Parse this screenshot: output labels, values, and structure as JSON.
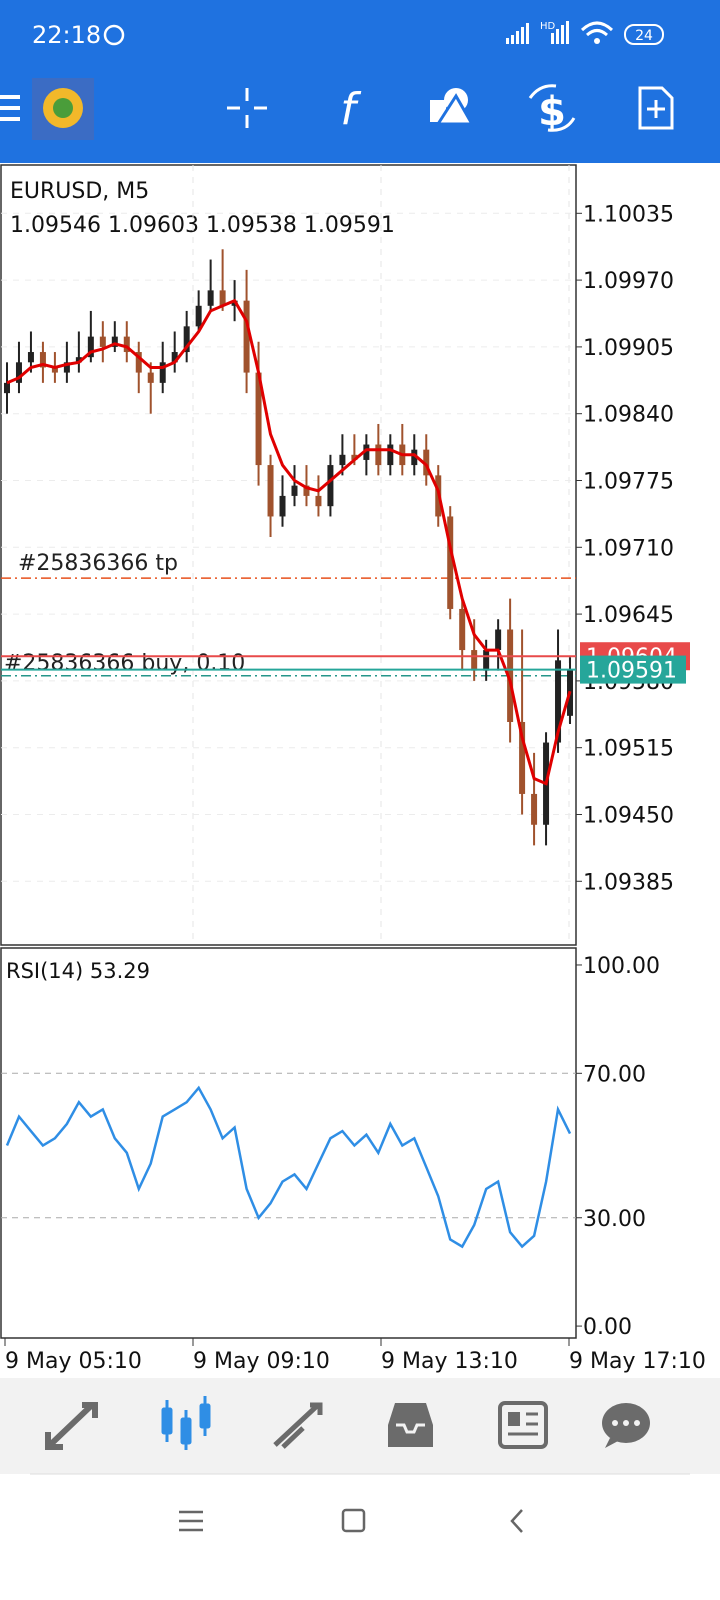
{
  "status_bar": {
    "time": "22:18",
    "network": "HD",
    "battery": "24"
  },
  "chart_data": [
    {
      "type": "candlestick",
      "title": "EURUSD, M5",
      "ohlc_label": "1.09546 1.09603 1.09538 1.09591",
      "open": [
        1.0986,
        1.0987,
        1.0989,
        1.099,
        1.09885,
        1.0988,
        1.0989,
        1.09895,
        1.09915,
        1.09905,
        1.09915,
        1.099,
        1.0988,
        1.0987,
        1.0989,
        1.099,
        1.09925,
        1.09945,
        1.0996,
        1.09945,
        1.0995,
        1.0988,
        1.0979,
        1.0974,
        1.0976,
        1.0977,
        1.0976,
        1.0975,
        1.0979,
        1.098,
        1.09795,
        1.0981,
        1.0979,
        1.0981,
        1.0979,
        1.09805,
        1.0978,
        1.0974,
        1.0965,
        1.0961,
        1.0959,
        1.0961,
        1.0963,
        1.0954,
        1.0947,
        1.0944,
        1.0952,
        1.09546
      ],
      "high": [
        1.0989,
        1.0991,
        1.0992,
        1.0991,
        1.099,
        1.0991,
        1.0992,
        1.0994,
        1.0993,
        1.0993,
        1.0993,
        1.0991,
        1.0989,
        1.0991,
        1.0992,
        1.0994,
        1.0996,
        1.0999,
        1.1,
        1.0997,
        1.0998,
        1.0991,
        1.098,
        1.0978,
        1.0979,
        1.0979,
        1.0978,
        1.098,
        1.0982,
        1.0982,
        1.0982,
        1.0983,
        1.0982,
        1.0983,
        1.0982,
        1.0982,
        1.0979,
        1.0975,
        1.0966,
        1.0964,
        1.0962,
        1.0964,
        1.0966,
        1.0963,
        1.0951,
        1.0953,
        1.0963,
        1.09603
      ],
      "low": [
        1.0984,
        1.0986,
        1.0988,
        1.0987,
        1.0987,
        1.0987,
        1.0988,
        1.0989,
        1.0989,
        1.099,
        1.0989,
        1.0986,
        1.0984,
        1.0986,
        1.0988,
        1.0989,
        1.0992,
        1.0994,
        1.0994,
        1.0993,
        1.0986,
        1.0977,
        1.0972,
        1.0973,
        1.0975,
        1.0975,
        1.0974,
        1.0974,
        1.0978,
        1.0979,
        1.0978,
        1.0978,
        1.0978,
        1.0978,
        1.0978,
        1.0977,
        1.0973,
        1.0964,
        1.0959,
        1.0958,
        1.0958,
        1.0959,
        1.0952,
        1.0945,
        1.0942,
        1.0942,
        1.0951,
        1.09538
      ],
      "close": [
        1.0987,
        1.0989,
        1.099,
        1.09885,
        1.0988,
        1.0989,
        1.09895,
        1.09915,
        1.09905,
        1.09915,
        1.099,
        1.0988,
        1.0987,
        1.0989,
        1.099,
        1.09925,
        1.09945,
        1.0996,
        1.09945,
        1.0995,
        1.0988,
        1.0979,
        1.0974,
        1.0976,
        1.0977,
        1.0976,
        1.0975,
        1.0979,
        1.098,
        1.09795,
        1.0981,
        1.0979,
        1.0981,
        1.0979,
        1.09805,
        1.0978,
        1.0974,
        1.0965,
        1.0961,
        1.0959,
        1.0961,
        1.0963,
        1.0954,
        1.0947,
        1.0944,
        1.0952,
        1.096,
        1.09591
      ],
      "up_color": "#222222",
      "down_color": "#a0522d",
      "ma": {
        "color": "#e00000",
        "values": [
          1.0987,
          1.09875,
          1.09885,
          1.09888,
          1.09885,
          1.09888,
          1.0989,
          1.099,
          1.09903,
          1.09908,
          1.09905,
          1.09895,
          1.09885,
          1.09885,
          1.0989,
          1.09905,
          1.0992,
          1.0994,
          1.09945,
          1.0995,
          1.0993,
          1.0988,
          1.0982,
          1.0979,
          1.09775,
          1.09768,
          1.09765,
          1.09775,
          1.09785,
          1.09795,
          1.09805,
          1.09805,
          1.09805,
          1.098,
          1.098,
          1.0979,
          1.09765,
          1.0971,
          1.0966,
          1.09625,
          1.0961,
          1.0961,
          1.0958,
          1.09525,
          1.09485,
          1.0948,
          1.0953,
          1.0957
        ]
      },
      "ylim": [
        1.09323,
        1.10082
      ],
      "yticks": [
        {
          "value": 1.10035,
          "label": "1.10035"
        },
        {
          "value": 1.0997,
          "label": "1.09970"
        },
        {
          "value": 1.09905,
          "label": "1.09905"
        },
        {
          "value": 1.0984,
          "label": "1.09840"
        },
        {
          "value": 1.09775,
          "label": "1.09775"
        },
        {
          "value": 1.0971,
          "label": "1.09710"
        },
        {
          "value": 1.09645,
          "label": "1.09645"
        },
        {
          "value": 1.0958,
          "label": "1.09580"
        },
        {
          "value": 1.09515,
          "label": "1.09515"
        },
        {
          "value": 1.0945,
          "label": "1.09450"
        },
        {
          "value": 1.09385,
          "label": "1.09385"
        }
      ],
      "grid": true,
      "levels": [
        {
          "label": "#25836366 tp",
          "value": 1.0968,
          "color": "#e8501c"
        },
        {
          "label": "#25836366 buy, 0.10",
          "value": 1.09585,
          "color": "#26968a"
        }
      ],
      "ask": {
        "value": 1.09604,
        "color": "#e84a4a"
      },
      "bid": {
        "value": 1.09591,
        "color": "#26a69a"
      }
    },
    {
      "type": "line",
      "title": "RSI(14) 53.29",
      "color": "#2f8ee5",
      "values": [
        50,
        58,
        54,
        50,
        52,
        56,
        62,
        58,
        60,
        52,
        48,
        38,
        45,
        58,
        60,
        62,
        66,
        60,
        52,
        55,
        38,
        30,
        34,
        40,
        42,
        38,
        45,
        52,
        54,
        50,
        53,
        48,
        56,
        50,
        52,
        44,
        36,
        24,
        22,
        28,
        38,
        40,
        26,
        22,
        25,
        40,
        60,
        53.29
      ],
      "ylim": [
        -3.3,
        104.7
      ],
      "yticks": [
        {
          "value": 100,
          "label": "100.00"
        },
        {
          "value": 70,
          "label": "70.00"
        },
        {
          "value": 30,
          "label": "30.00"
        },
        {
          "value": 0,
          "label": "0.00"
        }
      ],
      "xtick_labels": [
        "9 May 05:10",
        "9 May 09:10",
        "9 May 13:10",
        "9 May 17:10"
      ]
    }
  ]
}
